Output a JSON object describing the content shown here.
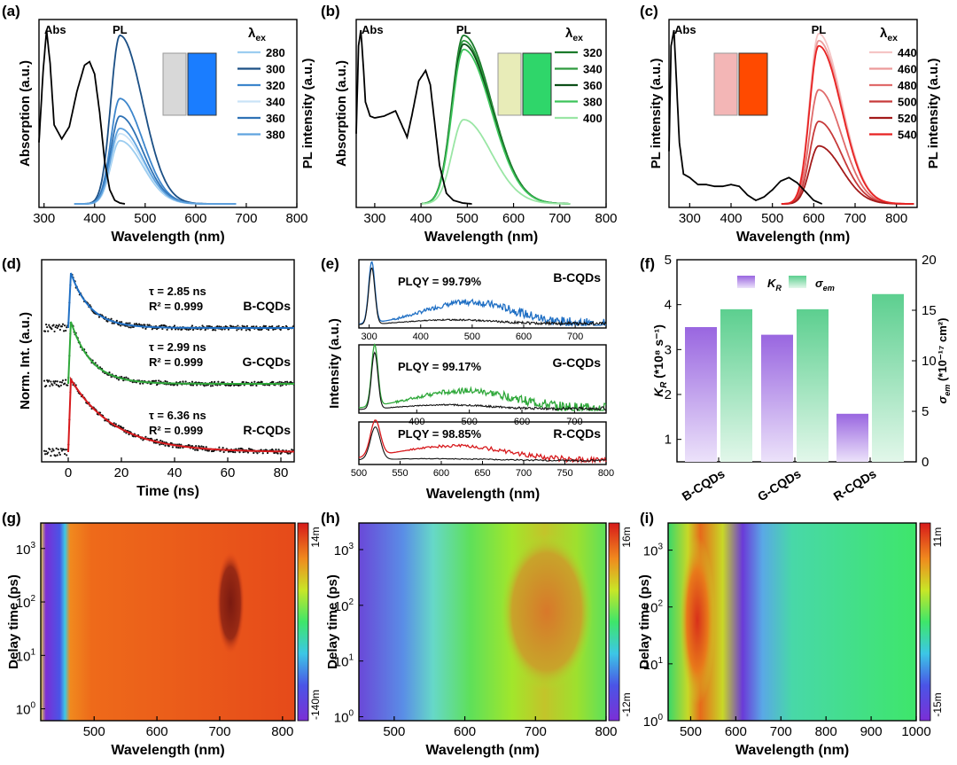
{
  "figure": {
    "panel_labels": [
      "(a)",
      "(b)",
      "(c)",
      "(d)",
      "(e)",
      "(f)",
      "(g)",
      "(h)",
      "(i)"
    ],
    "colors": {
      "blue": "#1f6fc4",
      "green": "#2fa83a",
      "red": "#d7191c",
      "kr": "#9966e0",
      "sigma": "#5ccf8f"
    }
  },
  "chart_data": [
    {
      "id": "a",
      "type": "line",
      "xlabel": "Wavelength (nm)",
      "ylabel_left": "Absorption (a.u.)",
      "xlim": [
        290,
        800
      ],
      "xticks": [
        300,
        400,
        500,
        600,
        700,
        800
      ],
      "tag_abs": "Abs",
      "tag_pl": "PL",
      "legend_title": "λ",
      "legend_title_sub": "ex",
      "legend": [
        "280",
        "300",
        "320",
        "340",
        "360",
        "380"
      ],
      "series_colors": [
        "#9ccdf0",
        "#1b4f85",
        "#3d86cc",
        "#c9e3f7",
        "#2f72b5",
        "#5fa3df"
      ],
      "pl_peak": 450,
      "pl_width_left": 18,
      "pl_width_right": 45,
      "pl_amplitudes": [
        0.36,
        0.96,
        0.6,
        0.4,
        0.5,
        0.43
      ],
      "absorption": {
        "x": [
          290,
          298,
          305,
          312,
          320,
          335,
          350,
          365,
          380,
          390,
          400,
          410,
          420,
          430,
          440,
          450,
          460
        ],
        "y": [
          0.35,
          0.75,
          0.99,
          0.8,
          0.45,
          0.37,
          0.44,
          0.64,
          0.79,
          0.81,
          0.74,
          0.52,
          0.24,
          0.08,
          0.02,
          0.005,
          0
        ]
      },
      "inset_colors": [
        "#d8d8d8",
        "#1a7dff"
      ]
    },
    {
      "id": "b",
      "type": "line",
      "xlabel": "Wavelength (nm)",
      "ylabel_left": "Absorption (a.u.)",
      "ylabel_right": "PL intensity (a.u.)",
      "xlim": [
        260,
        800
      ],
      "xticks": [
        300,
        400,
        500,
        600,
        700,
        800
      ],
      "tag_abs": "Abs",
      "tag_pl": "PL",
      "legend_title": "λ",
      "legend_title_sub": "ex",
      "legend": [
        "320",
        "340",
        "360",
        "380",
        "400"
      ],
      "series_colors": [
        "#1b7a2b",
        "#2e9a3e",
        "#0c4f18",
        "#3cc45a",
        "#9ae6a5"
      ],
      "pl_peak": 492,
      "pl_width_left": 25,
      "pl_width_right": 60,
      "pl_amplitudes": [
        0.96,
        0.93,
        0.91,
        0.88,
        0.48
      ],
      "absorption": {
        "x": [
          260,
          265,
          270,
          275,
          280,
          290,
          300,
          320,
          345,
          360,
          370,
          380,
          395,
          410,
          420,
          430,
          440,
          455,
          470,
          490,
          510
        ],
        "y": [
          0.4,
          0.9,
          0.99,
          0.8,
          0.58,
          0.5,
          0.49,
          0.5,
          0.53,
          0.44,
          0.38,
          0.5,
          0.7,
          0.76,
          0.68,
          0.45,
          0.22,
          0.06,
          0.02,
          0.005,
          0
        ]
      },
      "inset_colors": [
        "#e8ecb8",
        "#2fd66a"
      ]
    },
    {
      "id": "c",
      "type": "line",
      "xlabel": "Wavelength (nm)",
      "ylabel_left": "PL intensity (a.u.)",
      "ylabel_right": "PL intensity (a.u.)",
      "xlim": [
        250,
        850
      ],
      "xticks": [
        300,
        400,
        500,
        600,
        700,
        800
      ],
      "tag_abs": "Abs",
      "tag_pl": "PL",
      "legend_title": "λ",
      "legend_title_sub": "ex",
      "legend": [
        "440",
        "460",
        "480",
        "500",
        "520",
        "540"
      ],
      "series_colors": [
        "#f5c5c5",
        "#ec9a9a",
        "#e06b6b",
        "#c73a3a",
        "#a31a1a",
        "#e82222"
      ],
      "pl_peak": 612,
      "pl_width_left": 22,
      "pl_width_right": 55,
      "pl_amplitudes": [
        0.97,
        0.93,
        0.65,
        0.47,
        0.33,
        0.9
      ],
      "absorption": {
        "x": [
          250,
          255,
          262,
          268,
          275,
          285,
          300,
          320,
          340,
          360,
          380,
          400,
          420,
          440,
          460,
          480,
          500,
          520,
          540,
          560,
          580,
          600,
          620
        ],
        "y": [
          0.3,
          0.9,
          0.99,
          0.7,
          0.35,
          0.17,
          0.15,
          0.11,
          0.11,
          0.1,
          0.1,
          0.11,
          0.1,
          0.05,
          0.02,
          0.04,
          0.08,
          0.13,
          0.15,
          0.12,
          0.07,
          0.02,
          0
        ]
      },
      "inset_colors": [
        "#f3b6b6",
        "#ff4a00"
      ]
    },
    {
      "id": "d",
      "type": "line",
      "xlabel": "Time (ns)",
      "ylabel": "Norm. Int. (a.u.)",
      "xlim": [
        -10,
        85
      ],
      "xticks": [
        0,
        20,
        40,
        60,
        80
      ],
      "series": [
        {
          "name": "B-CQDs",
          "tau": "τ = 2.85 ns",
          "r2": "R² = 0.999",
          "tau_value": 2.85,
          "color": "#1f6fc4"
        },
        {
          "name": "G-CQDs",
          "tau": "τ = 2.99 ns",
          "r2": "R² = 0.999",
          "tau_value": 2.99,
          "color": "#2fa83a"
        },
        {
          "name": "R-CQDs",
          "tau": "τ = 6.36 ns",
          "r2": "R² = 0.999",
          "tau_value": 6.36,
          "color": "#d7191c"
        }
      ]
    },
    {
      "id": "e",
      "type": "line",
      "xlabel": "Wavelength (nm)",
      "ylabel": "Intensity (a.u.)",
      "subplots": [
        {
          "name": "B-CQDs",
          "plqy": "PLQY = 99.79%",
          "xlim": [
            280,
            760
          ],
          "xticks": [
            300,
            400,
            500,
            600,
            700
          ],
          "exc_peak": 305,
          "em_peak": 495,
          "em_w": 90,
          "em_h": 0.38,
          "color": "#1f6fc4"
        },
        {
          "name": "G-CQDs",
          "plqy": "PLQY = 99.17%",
          "xlim": [
            290,
            760
          ],
          "xticks": [
            400,
            500,
            600,
            700
          ],
          "exc_peak": 320,
          "em_peak": 490,
          "em_w": 100,
          "em_h": 0.32,
          "color": "#2fa83a"
        },
        {
          "name": "R-CQDs",
          "plqy": "PLQY = 98.85%",
          "xlim": [
            500,
            800
          ],
          "xticks": [
            500,
            550,
            600,
            650,
            700,
            750,
            800
          ],
          "exc_peak": 520,
          "em_peak": 615,
          "em_w": 70,
          "em_h": 0.45,
          "color": "#d7191c"
        }
      ]
    },
    {
      "id": "f",
      "type": "bar",
      "categories": [
        "B-CQDs",
        "G-CQDs",
        "R-CQDs"
      ],
      "series": [
        {
          "name_main": "K",
          "name_sub": "R",
          "values": [
            3.5,
            3.33,
            1.57
          ],
          "axis": "left",
          "color": "#9966e0"
        },
        {
          "name_main": "σ",
          "name_sub": "em",
          "values": [
            15.1,
            15.1,
            16.6
          ],
          "axis": "right",
          "color": "#5ccf8f"
        }
      ],
      "ylabel_left_main": "K",
      "ylabel_left_sub": "R",
      "ylabel_left_rest": " (*10⁸ s⁻¹)",
      "ylabel_right_main": "σ",
      "ylabel_right_sub": "em",
      "ylabel_right_rest": " (*10⁻¹⁷ cm²)",
      "ylim_left": [
        0.5,
        5
      ],
      "yticks_left": [
        1,
        2,
        3,
        4,
        5
      ],
      "ylim_right": [
        0,
        20
      ],
      "yticks_right": [
        0,
        5,
        10,
        15,
        20
      ]
    },
    {
      "id": "g",
      "type": "heatmap",
      "xlabel": "Wavelength (nm)",
      "ylabel": "Delay time (ps)",
      "xlim": [
        415,
        820
      ],
      "xticks": [
        500,
        600,
        700,
        800
      ],
      "ylim": [
        0.6,
        3000
      ],
      "yticks": [
        1,
        10,
        100,
        1000
      ],
      "colorbar": {
        "max": "14m",
        "min": "-140m"
      }
    },
    {
      "id": "h",
      "type": "heatmap",
      "xlabel": "Wavelength (nm)",
      "ylabel": "Delay time (ps)",
      "xlim": [
        450,
        800
      ],
      "xticks": [
        500,
        600,
        700,
        800
      ],
      "ylim": [
        0.85,
        3000
      ],
      "yticks": [
        1,
        10,
        100,
        1000
      ],
      "colorbar": {
        "max": "16m",
        "min": "-12m"
      }
    },
    {
      "id": "i",
      "type": "heatmap",
      "xlabel": "Wavelength (nm)",
      "ylabel": "Delay time (ps)",
      "xlim": [
        450,
        1000
      ],
      "xticks": [
        500,
        600,
        700,
        800,
        900,
        1000
      ],
      "ylim": [
        1,
        3000
      ],
      "yticks": [
        1,
        10,
        100,
        1000
      ],
      "colorbar": {
        "max": "11m",
        "min": "-15m"
      }
    }
  ]
}
